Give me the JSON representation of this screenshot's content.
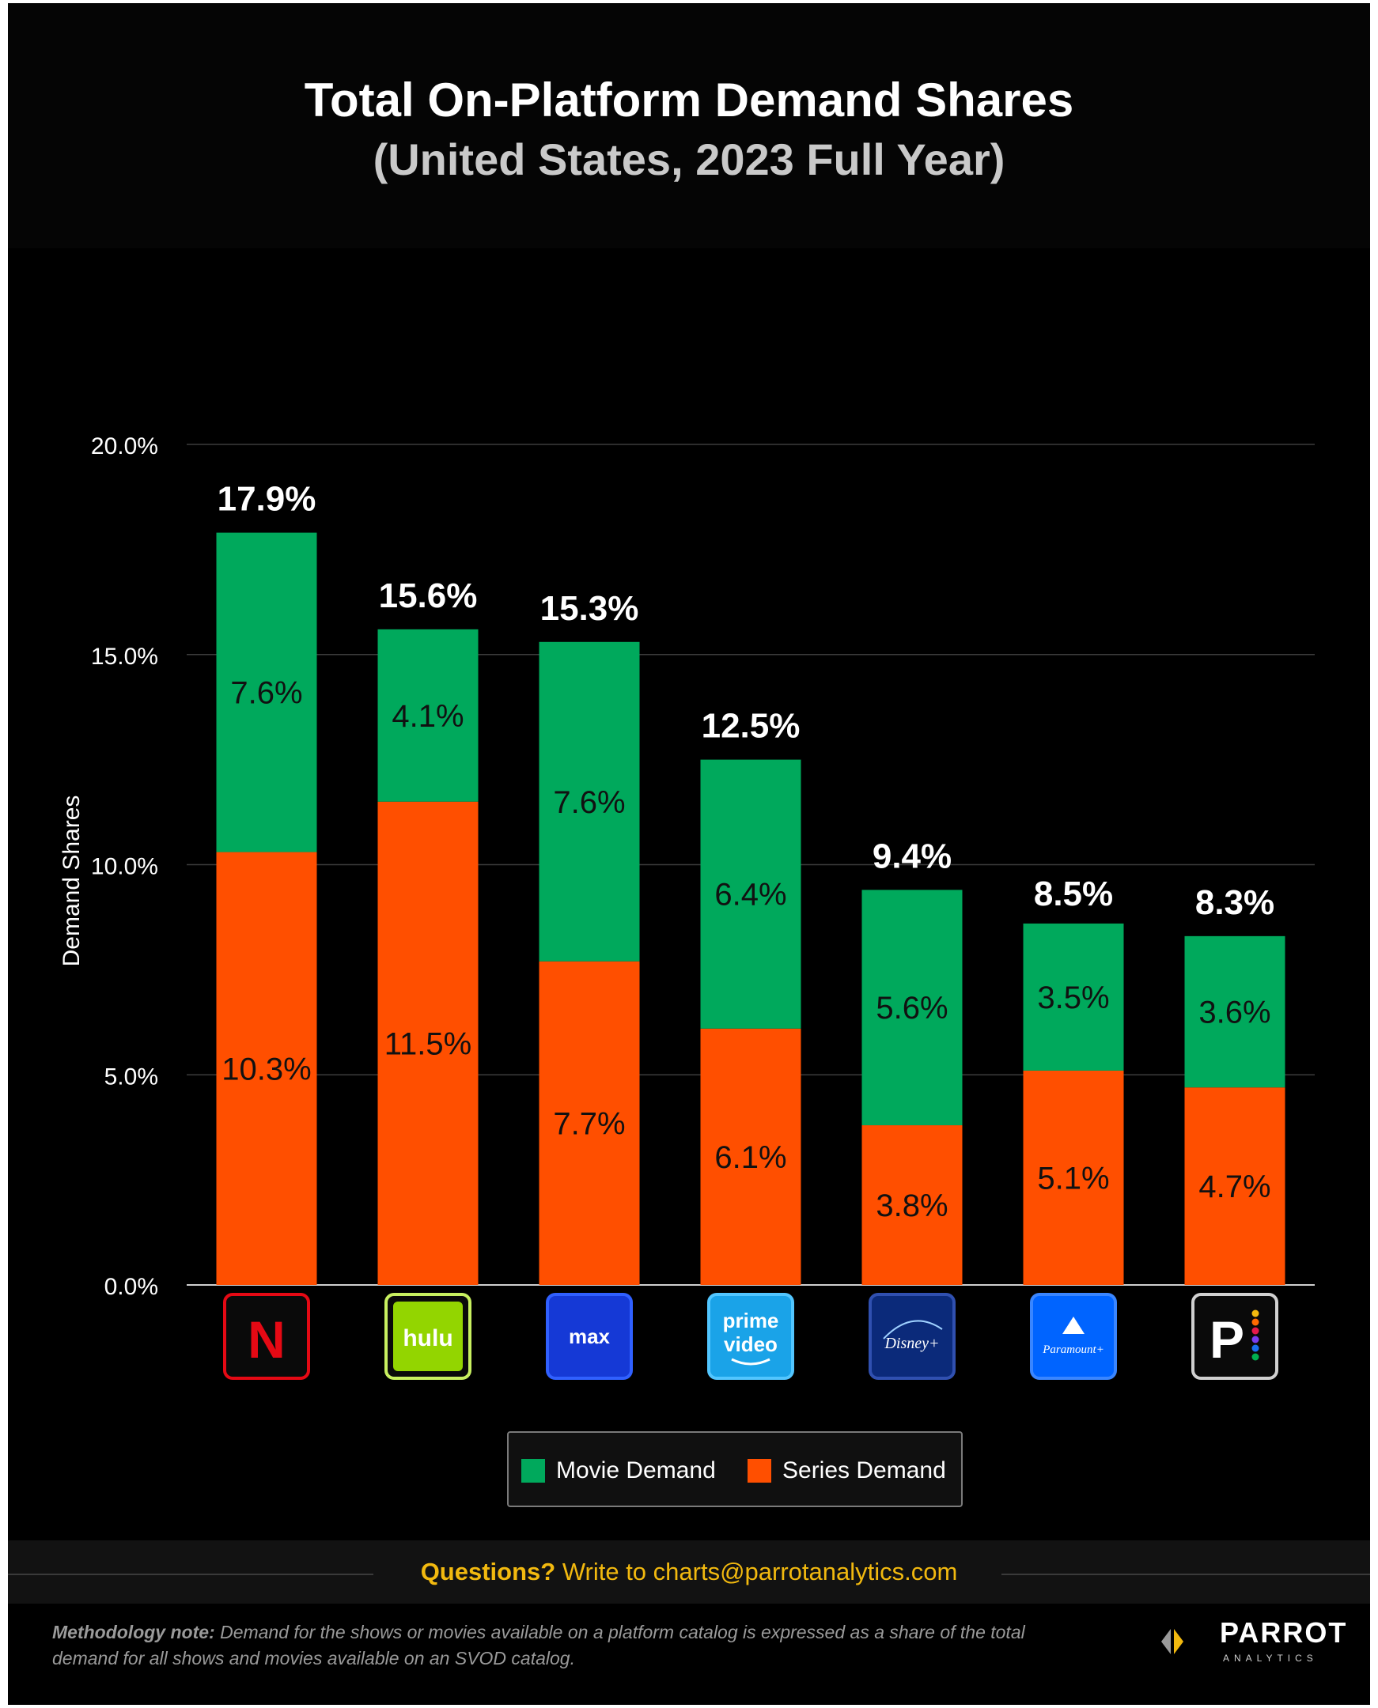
{
  "chart_data": {
    "type": "bar",
    "stacked": true,
    "title": "Total On-Platform Demand Shares",
    "subtitle": "(United States, 2023 Full Year)",
    "ylabel": "Demand Shares",
    "ylim": [
      0,
      20
    ],
    "yticks": [
      0,
      5,
      10,
      15,
      20
    ],
    "ytick_labels": [
      "0.0%",
      "5.0%",
      "10.0%",
      "15.0%",
      "20.0%"
    ],
    "grid": true,
    "categories": [
      "Netflix",
      "Hulu",
      "Max",
      "Prime Video",
      "Disney+",
      "Paramount+",
      "Peacock"
    ],
    "series": [
      {
        "name": "Series Demand",
        "color": "#ff4f00",
        "values": [
          10.3,
          11.5,
          7.7,
          6.1,
          3.8,
          5.1,
          4.7
        ],
        "labels": [
          "10.3%",
          "11.5%",
          "7.7%",
          "6.1%",
          "3.8%",
          "5.1%",
          "4.7%"
        ]
      },
      {
        "name": "Movie Demand",
        "color": "#00a95c",
        "values": [
          7.6,
          4.1,
          7.6,
          6.4,
          5.6,
          3.5,
          3.6
        ],
        "labels": [
          "7.6%",
          "4.1%",
          "7.6%",
          "6.4%",
          "5.6%",
          "3.5%",
          "3.6%"
        ]
      }
    ],
    "totals": [
      17.9,
      15.6,
      15.3,
      12.5,
      9.4,
      8.5,
      8.3
    ],
    "total_labels": [
      "17.9%",
      "15.6%",
      "15.3%",
      "12.5%",
      "9.4%",
      "8.5%",
      "8.3%"
    ],
    "legend": {
      "placement": "bottom-center"
    }
  },
  "logos": [
    {
      "key": "netflix",
      "text": "N",
      "icon": "netflix-logo-icon",
      "color": "#e50914"
    },
    {
      "key": "hulu",
      "text": "hulu",
      "icon": "hulu-logo-icon",
      "color": "#93d500"
    },
    {
      "key": "max",
      "text": "max",
      "icon": "max-logo-icon",
      "color": "#1539d6"
    },
    {
      "key": "prime-video",
      "text": "prime video",
      "icon": "prime-video-logo-icon",
      "color": "#1aa3e8"
    },
    {
      "key": "disney-plus",
      "text": "Disney+",
      "icon": "disney-plus-logo-icon",
      "color": "#0b2a7a"
    },
    {
      "key": "paramount-plus",
      "text": "Paramount+",
      "icon": "paramount-plus-logo-icon",
      "color": "#0064ff"
    },
    {
      "key": "peacock",
      "text": "P",
      "icon": "peacock-logo-icon",
      "color": "#ffffff"
    }
  ],
  "legend": {
    "movie_label": "Movie Demand",
    "series_label": "Series Demand",
    "movie_color": "#00a95c",
    "series_color": "#ff4f00"
  },
  "footer": {
    "question_lead": "Questions?",
    "question_text": " Write to charts@parrotanalytics.com",
    "method_lead": "Methodology note:",
    "method_text": " Demand for the shows or movies available on a platform catalog is expressed as a share of the total demand for all shows and movies available on an SVOD catalog.",
    "brand_name": "PARROT",
    "brand_sub": "ANALYTICS"
  }
}
